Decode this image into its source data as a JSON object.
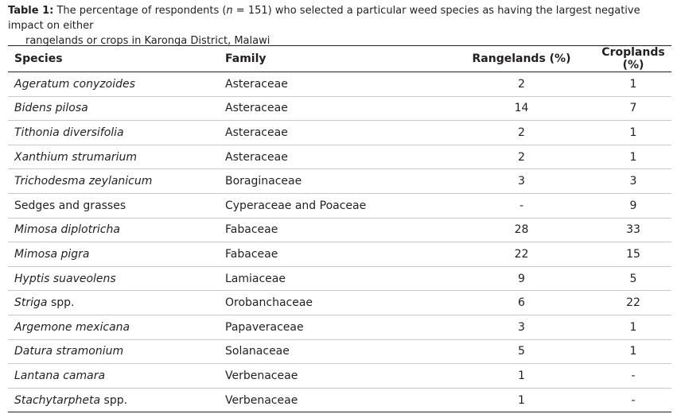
{
  "caption": {
    "label": "Table 1:",
    "text": [
      "The percentage of respondents (",
      "n",
      " = 151) who selected a particular weed species as having the largest negative impact on either",
      "rangelands or crops in Karonga District, Malawi"
    ]
  },
  "table": {
    "columns": [
      "Species",
      "Family",
      "Rangelands (%)",
      "Croplands (%)"
    ],
    "rows": [
      [
        [
          "Ageratum conyzoides"
        ],
        "Asteraceae",
        2,
        1
      ],
      [
        [
          "Bidens pilosa"
        ],
        "Asteraceae",
        14,
        7
      ],
      [
        [
          "Tithonia diversifolia"
        ],
        "Asteraceae",
        2,
        1
      ],
      [
        [
          "Xanthium strumarium"
        ],
        "Asteraceae",
        2,
        1
      ],
      [
        [
          "Trichodesma zeylanicum"
        ],
        "Boraginaceae",
        3,
        3
      ],
      [
        [
          "",
          "Sedges and grasses"
        ],
        "Cyperaceae and Poaceae",
        "-",
        9
      ],
      [
        [
          "Mimosa diplotricha"
        ],
        "Fabaceae",
        28,
        33
      ],
      [
        [
          "Mimosa pigra"
        ],
        "Fabaceae",
        22,
        15
      ],
      [
        [
          "Hyptis suaveolens"
        ],
        "Lamiaceae",
        9,
        5
      ],
      [
        [
          "Striga",
          " spp."
        ],
        "Orobanchaceae",
        6,
        22
      ],
      [
        [
          "Argemone mexicana"
        ],
        "Papaveraceae",
        3,
        1
      ],
      [
        [
          "Datura stramonium"
        ],
        "Solanaceae",
        5,
        1
      ],
      [
        [
          "Lantana camara"
        ],
        "Verbenaceae",
        1,
        "-"
      ],
      [
        [
          "Stachytarpheta",
          " spp."
        ],
        "Verbenaceae",
        1,
        "-"
      ]
    ]
  }
}
